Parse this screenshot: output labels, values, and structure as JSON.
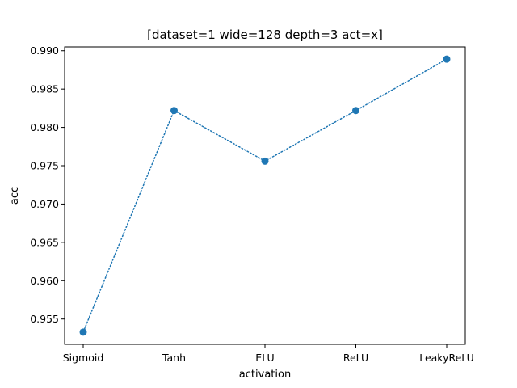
{
  "chart_data": {
    "type": "line",
    "title": "[dataset=1 wide=128 depth=3 act=x]",
    "xlabel": "activation",
    "ylabel": "acc",
    "categories": [
      "Sigmoid",
      "Tanh",
      "ELU",
      "ReLU",
      "LeakyReLU"
    ],
    "series": [
      {
        "values": [
          0.9533,
          0.9822,
          0.9756,
          0.9822,
          0.9889
        ]
      }
    ],
    "ylim": [
      0.9517,
      0.9905
    ],
    "yticks": [
      0.955,
      0.96,
      0.965,
      0.97,
      0.975,
      0.98,
      0.985,
      0.99
    ],
    "ytick_labels": [
      "0.955",
      "0.960",
      "0.965",
      "0.970",
      "0.975",
      "0.980",
      "0.985",
      "0.990"
    ],
    "grid": false,
    "line_style": "dotted",
    "marker": "circle",
    "series_color": "#1f77b4"
  }
}
